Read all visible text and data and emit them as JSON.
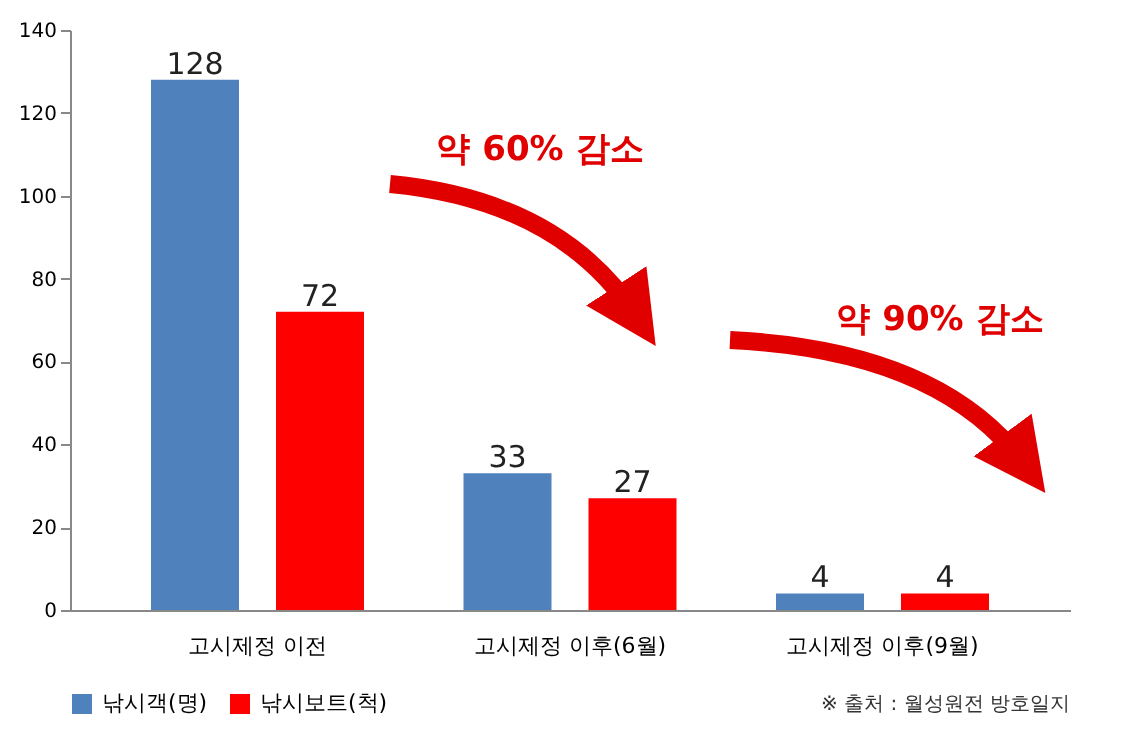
{
  "chart_data": {
    "type": "bar",
    "categories": [
      "고시제정 이전",
      "고시제정 이후(6월)",
      "고시제정 이후(9월)"
    ],
    "series": [
      {
        "name": "낚시객(명)",
        "color": "#4f81bd",
        "values": [
          128,
          33,
          4
        ]
      },
      {
        "name": "낚시보트(척)",
        "color": "#ff0000",
        "values": [
          72,
          27,
          4
        ]
      }
    ],
    "ylim": [
      0,
      140
    ],
    "yticks": [
      0,
      20,
      40,
      60,
      80,
      100,
      120,
      140
    ],
    "grid": false,
    "legend": "bottom",
    "data_labels": true,
    "annotations": [
      "약 60% 감소",
      "약 90% 감소",
      "※ 출처 : 월성원전 방호일지"
    ]
  }
}
